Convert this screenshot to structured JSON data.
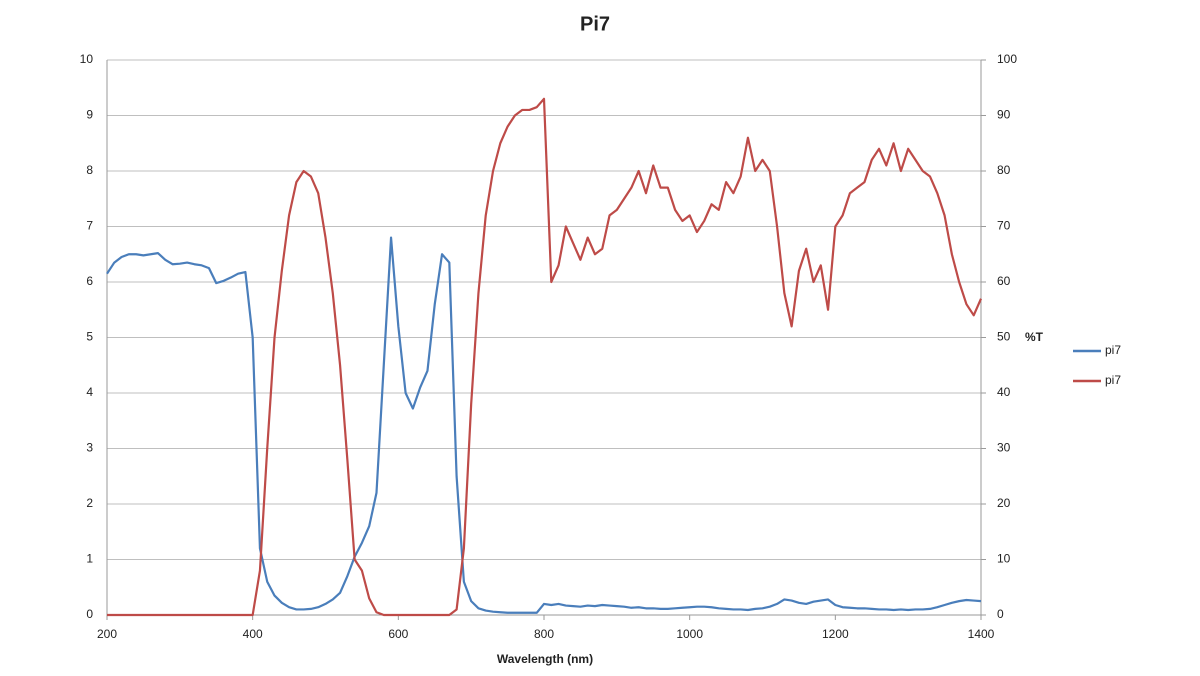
{
  "chart_data": {
    "type": "line",
    "title": "Pi7",
    "x_label": "Wavelength (nm)",
    "y2_label": "%T",
    "x": [
      200,
      210,
      220,
      230,
      240,
      250,
      260,
      270,
      280,
      290,
      300,
      310,
      320,
      330,
      340,
      350,
      360,
      370,
      380,
      390,
      400,
      410,
      420,
      430,
      440,
      450,
      460,
      470,
      480,
      490,
      500,
      510,
      520,
      530,
      540,
      550,
      560,
      570,
      580,
      590,
      600,
      610,
      620,
      630,
      640,
      650,
      660,
      670,
      680,
      690,
      700,
      710,
      720,
      730,
      740,
      750,
      760,
      770,
      780,
      790,
      800,
      810,
      820,
      830,
      840,
      850,
      860,
      870,
      880,
      890,
      900,
      910,
      920,
      930,
      940,
      950,
      960,
      970,
      980,
      990,
      1000,
      1010,
      1020,
      1030,
      1040,
      1050,
      1060,
      1070,
      1080,
      1090,
      1100,
      1110,
      1120,
      1130,
      1140,
      1150,
      1160,
      1170,
      1180,
      1190,
      1200,
      1210,
      1220,
      1230,
      1240,
      1250,
      1260,
      1270,
      1280,
      1290,
      1300,
      1310,
      1320,
      1330,
      1340,
      1350,
      1360,
      1370,
      1380,
      1390,
      1400
    ],
    "series": [
      {
        "name": "pi7",
        "color": "#4a7ebb",
        "axis": "y",
        "values": [
          6.15,
          6.35,
          6.45,
          6.5,
          6.5,
          6.48,
          6.5,
          6.52,
          6.4,
          6.32,
          6.33,
          6.35,
          6.32,
          6.3,
          6.25,
          5.98,
          6.02,
          6.08,
          6.15,
          6.18,
          5.0,
          1.2,
          0.6,
          0.35,
          0.22,
          0.14,
          0.1,
          0.1,
          0.11,
          0.14,
          0.2,
          0.28,
          0.4,
          0.7,
          1.05,
          1.3,
          1.6,
          2.2,
          4.5,
          6.8,
          5.2,
          4.0,
          3.72,
          4.1,
          4.4,
          5.6,
          6.5,
          6.35,
          2.5,
          0.6,
          0.25,
          0.12,
          0.08,
          0.06,
          0.05,
          0.04,
          0.04,
          0.04,
          0.04,
          0.04,
          0.2,
          0.18,
          0.2,
          0.17,
          0.16,
          0.15,
          0.17,
          0.16,
          0.18,
          0.17,
          0.16,
          0.15,
          0.13,
          0.14,
          0.12,
          0.12,
          0.11,
          0.11,
          0.12,
          0.13,
          0.14,
          0.15,
          0.15,
          0.14,
          0.12,
          0.11,
          0.1,
          0.1,
          0.09,
          0.11,
          0.12,
          0.15,
          0.2,
          0.28,
          0.26,
          0.22,
          0.2,
          0.24,
          0.26,
          0.28,
          0.18,
          0.14,
          0.13,
          0.12,
          0.12,
          0.11,
          0.1,
          0.1,
          0.09,
          0.1,
          0.09,
          0.1,
          0.1,
          0.11,
          0.14,
          0.18,
          0.22,
          0.25,
          0.27,
          0.26,
          0.25
        ]
      },
      {
        "name": "pi7",
        "color": "#be4b48",
        "axis": "y2",
        "values": [
          0,
          0,
          0,
          0,
          0,
          0,
          0,
          0,
          0,
          0,
          0,
          0,
          0,
          0,
          0,
          0,
          0,
          0,
          0,
          0,
          0,
          8,
          30,
          50,
          62,
          72,
          78,
          80,
          79,
          76,
          68,
          58,
          45,
          28,
          10,
          8,
          3,
          0.5,
          0,
          0,
          0,
          0,
          0,
          0,
          0,
          0,
          0,
          0,
          1,
          12,
          38,
          58,
          72,
          80,
          85,
          88,
          90,
          91,
          91,
          91.5,
          93,
          60,
          63,
          70,
          67,
          64,
          68,
          65,
          66,
          72,
          73,
          75,
          77,
          80,
          76,
          81,
          77,
          77,
          73,
          71,
          72,
          69,
          71,
          74,
          73,
          78,
          76,
          79,
          86,
          80,
          82,
          80,
          70,
          58,
          52,
          62,
          66,
          60,
          63,
          55,
          70,
          72,
          76,
          77,
          78,
          82,
          84,
          81,
          85,
          80,
          84,
          82,
          80,
          79,
          76,
          72,
          65,
          60,
          56,
          54,
          57
        ]
      }
    ],
    "xlim": [
      200,
      1400
    ],
    "xticks": [
      200,
      400,
      600,
      800,
      1000,
      1200,
      1400
    ],
    "ylim": [
      0,
      10
    ],
    "yticks": [
      0,
      1,
      2,
      3,
      4,
      5,
      6,
      7,
      8,
      9,
      10
    ],
    "y2lim": [
      0,
      100
    ],
    "y2ticks": [
      0,
      10,
      20,
      30,
      40,
      50,
      60,
      70,
      80,
      90,
      100
    ],
    "grid": true,
    "legend": "right"
  }
}
